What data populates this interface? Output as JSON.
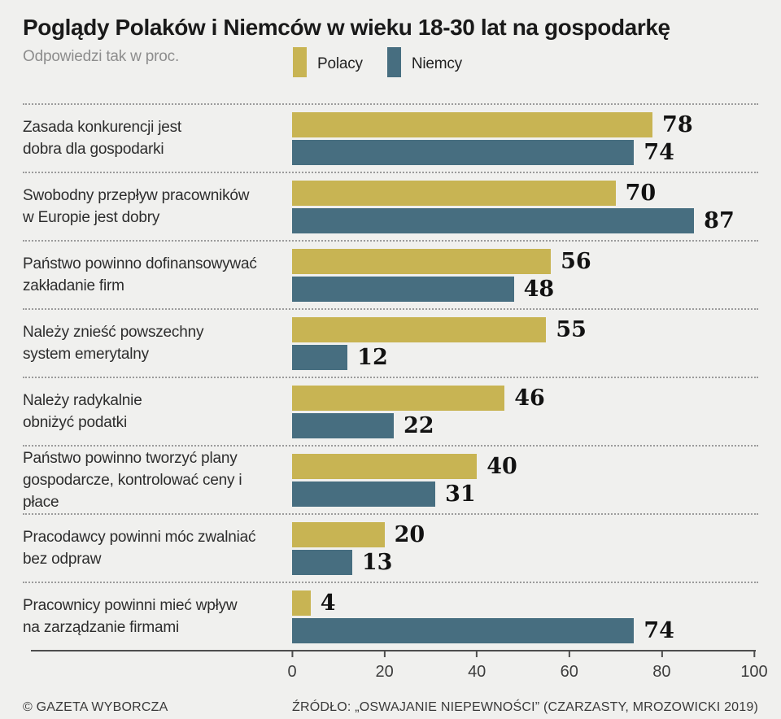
{
  "title": "Poglądy Polaków i Niemców w wieku 18-30 lat na gospodarkę",
  "subtitle": "Odpowiedzi tak w proc.",
  "legend": {
    "items": [
      {
        "label": "Polacy",
        "color": "#c8b453"
      },
      {
        "label": "Niemcy",
        "color": "#476e80"
      }
    ]
  },
  "chart_data": {
    "type": "bar",
    "orientation": "horizontal",
    "title": "Poglądy Polaków i Niemców w wieku 18-30 lat na gospodarkę",
    "subtitle": "Odpowiedzi tak w proc.",
    "categories": [
      "Zasada konkurencji jest\ndobra dla gospodarki",
      "Swobodny przepływ pracowników\nw Europie jest dobry",
      "Państwo powinno dofinansowywać\nzakładanie firm",
      "Należy znieść powszechny\nsystem emerytalny",
      "Należy radykalnie\nobniżyć podatki",
      "Państwo powinno tworzyć plany\ngospodarcze, kontrolować ceny i płace",
      "Pracodawcy powinni móc zwalniać\nbez odpraw",
      "Pracownicy powinni mieć wpływ\nna zarządzanie firmami"
    ],
    "series": [
      {
        "name": "Polacy",
        "color": "#c8b453",
        "values": [
          78,
          70,
          56,
          55,
          46,
          40,
          20,
          4
        ]
      },
      {
        "name": "Niemcy",
        "color": "#476e80",
        "values": [
          74,
          87,
          48,
          12,
          22,
          31,
          13,
          74
        ]
      }
    ],
    "xlim": [
      0,
      100
    ],
    "x_ticks": [
      0,
      20,
      40,
      60,
      80,
      100
    ],
    "value_labels": true,
    "grid": false,
    "legend_position": "top"
  },
  "footer": {
    "left": "© GAZETA WYBORCZA",
    "right": "ŹRÓDŁO: „OSWAJANIE NIEPEWNOŚCI” (CZARZASTY, MROZOWICKI 2019)"
  },
  "colors": {
    "background": "#f0f0ee",
    "separator": "#9b9b9b",
    "axis": "#4d4d4d"
  }
}
